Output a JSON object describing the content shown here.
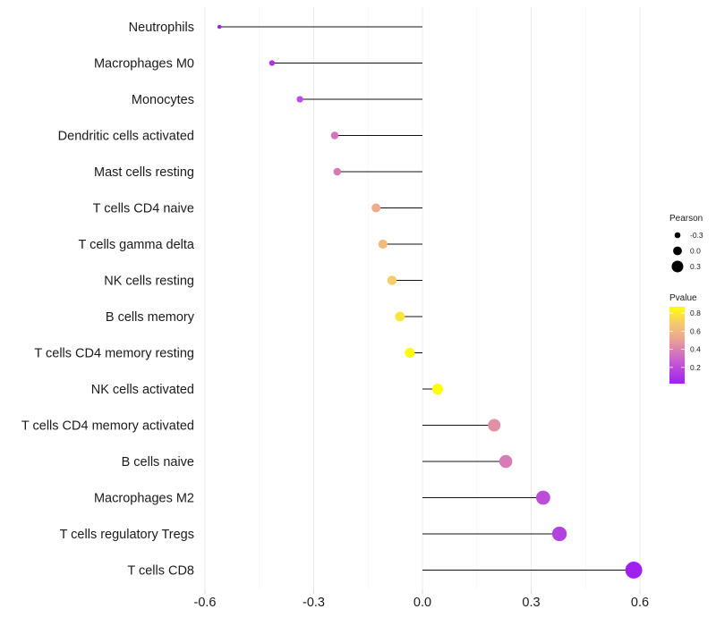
{
  "chart_data": {
    "type": "lollipop",
    "title": "",
    "xlabel": "",
    "ylabel": "",
    "xlim": [
      -0.62,
      0.64
    ],
    "xticks": [
      -0.6,
      -0.3,
      0.0,
      0.3,
      0.6
    ],
    "xtick_labels": [
      "-0.6",
      "-0.3",
      "0.0",
      "0.3",
      "0.6"
    ],
    "grid": "vertical major and minor",
    "categories": [
      "Neutrophils",
      "Macrophages M0",
      "Monocytes",
      "Dendritic cells activated",
      "Mast cells resting",
      "T cells CD4 naive",
      "T cells gamma delta",
      "NK cells resting",
      "B cells memory",
      "T cells CD4 memory resting",
      "NK cells activated",
      "T cells CD4 memory activated",
      "B cells naive",
      "Macrophages M2",
      "T cells regulatory  Tregs ",
      "T cells CD8"
    ],
    "series": [
      {
        "name": "Pearson",
        "values": [
          -0.56,
          -0.415,
          -0.338,
          -0.242,
          -0.235,
          -0.128,
          -0.109,
          -0.084,
          -0.062,
          -0.035,
          0.042,
          0.198,
          0.23,
          0.333,
          0.378,
          0.583
        ]
      },
      {
        "name": "Pvalue",
        "values": [
          0.03,
          0.1,
          0.2,
          0.35,
          0.37,
          0.55,
          0.62,
          0.7,
          0.78,
          0.86,
          0.87,
          0.45,
          0.38,
          0.2,
          0.15,
          0.02
        ]
      }
    ],
    "legend": {
      "placement": "right",
      "size_legend": {
        "title": "Pearson",
        "labels": [
          "-0.3",
          "0.0",
          "0.3"
        ],
        "values": [
          -0.3,
          0.0,
          0.3
        ]
      },
      "color_legend": {
        "title": "Pvalue",
        "labels": [
          "0.8",
          "0.6",
          "0.4",
          "0.2"
        ],
        "values": [
          0.8,
          0.6,
          0.4,
          0.2
        ],
        "range": [
          0.02,
          0.87
        ],
        "low_color": "#a020f0",
        "high_color": "#ffff00"
      }
    }
  }
}
